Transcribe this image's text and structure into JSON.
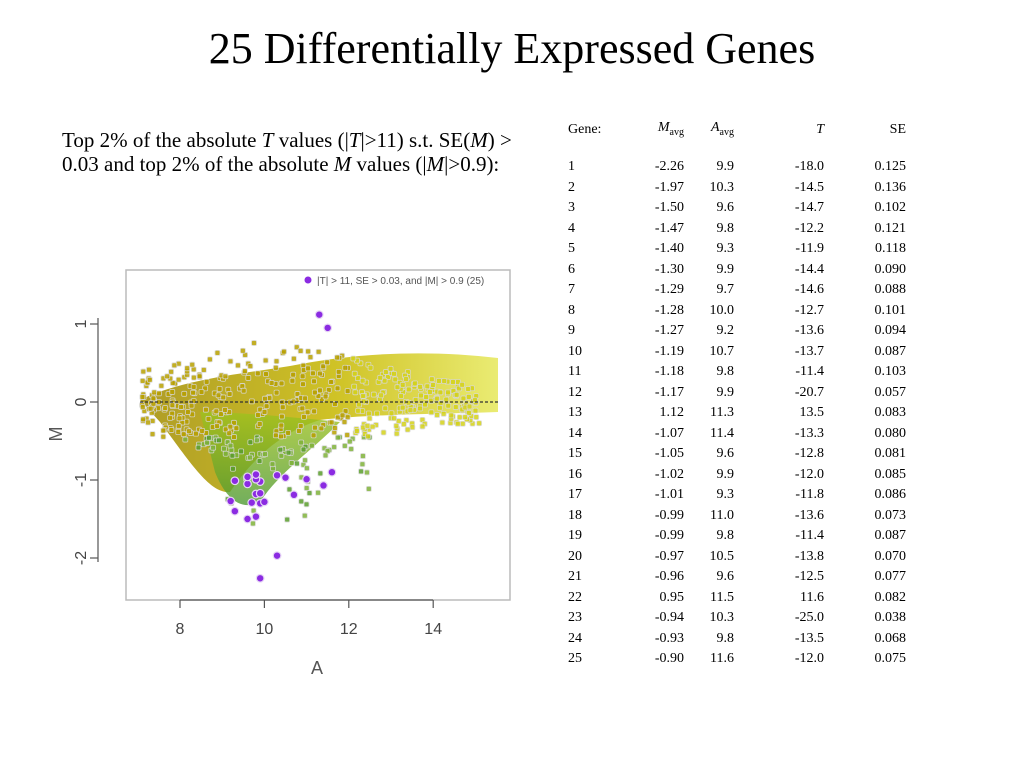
{
  "title": "25 Differentially Expressed Genes",
  "description": {
    "p1": "Top 2% of the absolute ",
    "T": "T",
    "p2": " values (|",
    "p3": "|>11) s.t. SE(",
    "M": "M",
    "p4": ") > 0.03 and top 2% of the absolute ",
    "p5": " values (|",
    "p6": "|>0.9):"
  },
  "plot": {
    "legend": "|T| > 11, SE > 0.03, and |M| > 0.9 (25)",
    "xlabel": "A",
    "ylabel": "M",
    "xticks": [
      "8",
      "10",
      "12",
      "14"
    ],
    "yticks": [
      "1",
      "0",
      "-1",
      "-2"
    ],
    "highlight_color": "#8b2be2",
    "point_colors": [
      "#b8a000",
      "#d4d21a",
      "#7fb23a",
      "#5a9e2c"
    ]
  },
  "table": {
    "headers": {
      "gene": "Gene:",
      "m": "M",
      "m_sub": "avg",
      "a": "A",
      "a_sub": "avg",
      "t": "T",
      "se": "SE"
    },
    "rows": [
      [
        "1",
        "-2.26",
        "9.9",
        "-18.0",
        "0.125"
      ],
      [
        "2",
        "-1.97",
        "10.3",
        "-14.5",
        "0.136"
      ],
      [
        "3",
        "-1.50",
        "9.6",
        "-14.7",
        "0.102"
      ],
      [
        "4",
        "-1.47",
        "9.8",
        "-12.2",
        "0.121"
      ],
      [
        "5",
        "-1.40",
        "9.3",
        "-11.9",
        "0.118"
      ],
      [
        "6",
        "-1.30",
        "9.9",
        "-14.4",
        "0.090"
      ],
      [
        "7",
        "-1.29",
        "9.7",
        "-14.6",
        "0.088"
      ],
      [
        "8",
        "-1.28",
        "10.0",
        "-12.7",
        "0.101"
      ],
      [
        "9",
        "-1.27",
        "9.2",
        "-13.6",
        "0.094"
      ],
      [
        "10",
        "-1.19",
        "10.7",
        "-13.7",
        "0.087"
      ],
      [
        "11",
        "-1.18",
        "9.8",
        "-11.4",
        "0.103"
      ],
      [
        "12",
        "-1.17",
        "9.9",
        "-20.7",
        "0.057"
      ],
      [
        "13",
        "1.12",
        "11.3",
        "13.5",
        "0.083"
      ],
      [
        "14",
        "-1.07",
        "11.4",
        "-13.3",
        "0.080"
      ],
      [
        "15",
        "-1.05",
        "9.6",
        "-12.8",
        "0.081"
      ],
      [
        "16",
        "-1.02",
        "9.9",
        "-12.0",
        "0.085"
      ],
      [
        "17",
        "-1.01",
        "9.3",
        "-11.8",
        "0.086"
      ],
      [
        "18",
        "-0.99",
        "11.0",
        "-13.6",
        "0.073"
      ],
      [
        "19",
        "-0.99",
        "9.8",
        "-11.4",
        "0.087"
      ],
      [
        "20",
        "-0.97",
        "10.5",
        "-13.8",
        "0.070"
      ],
      [
        "21",
        "-0.96",
        "9.6",
        "-12.5",
        "0.077"
      ],
      [
        "22",
        "0.95",
        "11.5",
        "11.6",
        "0.082"
      ],
      [
        "23",
        "-0.94",
        "10.3",
        "-25.0",
        "0.038"
      ],
      [
        "24",
        "-0.93",
        "9.8",
        "-13.5",
        "0.068"
      ],
      [
        "25",
        "-0.90",
        "11.6",
        "-12.0",
        "0.075"
      ]
    ]
  }
}
